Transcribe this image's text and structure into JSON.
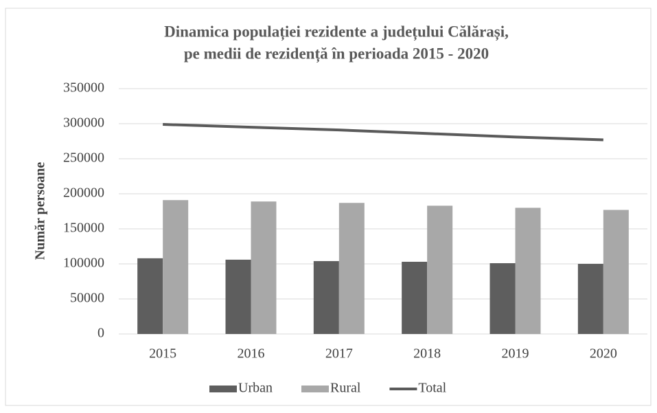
{
  "chart_data": {
    "type": "combo",
    "title": "Dinamica populației rezidente a județului Călărași,",
    "subtitle": "pe medii de rezidență în perioada 2015 - 2020",
    "y_label": "Număr persoane",
    "categories": [
      "2015",
      "2016",
      "2017",
      "2018",
      "2019",
      "2020"
    ],
    "series": [
      {
        "name": "Urban",
        "type": "bar",
        "color": "#5e5e5e",
        "values": [
          108000,
          106000,
          104000,
          103000,
          101000,
          100000
        ]
      },
      {
        "name": "Rural",
        "type": "bar",
        "color": "#a8a8a8",
        "values": [
          191000,
          189000,
          187000,
          183000,
          180000,
          177000
        ]
      },
      {
        "name": "Total",
        "type": "line",
        "color": "#5a5a5a",
        "values": [
          299000,
          295000,
          291000,
          286000,
          281000,
          277000
        ]
      }
    ],
    "ylim": [
      0,
      350000
    ],
    "yticks": [
      0,
      50000,
      100000,
      150000,
      200000,
      250000,
      300000,
      350000
    ],
    "grid": true,
    "legend": "bottom"
  }
}
